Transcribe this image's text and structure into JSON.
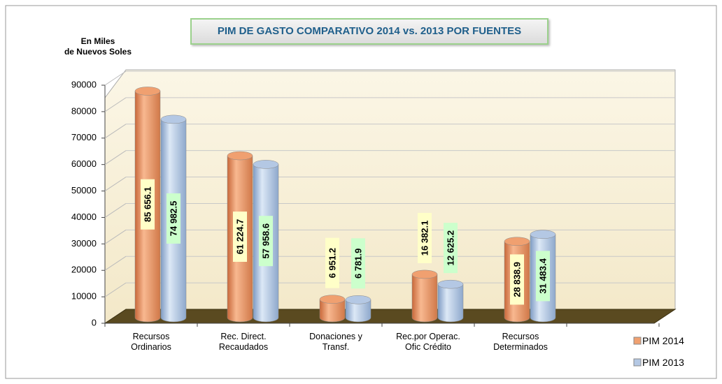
{
  "chart_data": {
    "type": "bar3d",
    "title": "PIM  DE GASTO COMPARATIVO 2014 vs. 2013 POR FUENTES",
    "y_label": "En Miles\nde Nuevos Soles",
    "categories": [
      "Recursos Ordinarios",
      "Rec. Direct. Recaudados",
      "Donaciones y Transf.",
      "Rec.por Operac. Ofic Crédito",
      "Recursos Determinados"
    ],
    "series": [
      {
        "name": "PIM 2014",
        "color": "#f0a070",
        "label_bg": "#ffffc8",
        "values": [
          85656.1,
          61224.7,
          6951.2,
          16382.1,
          28838.9
        ],
        "value_labels": [
          "85 656.1",
          "61 224.7",
          "6 951.2",
          "16 382.1",
          "28 838.9"
        ]
      },
      {
        "name": "PIM 2013",
        "color": "#b4c8e4",
        "label_bg": "#ccffcc",
        "values": [
          74982.5,
          57958.6,
          6781.9,
          12625.2,
          31483.4
        ],
        "value_labels": [
          "74 982.5",
          "57 958.6",
          "6 781.9",
          "12 625.2",
          "31 483.4"
        ]
      }
    ],
    "ylim": [
      0,
      90000
    ],
    "yticks": [
      0,
      10000,
      20000,
      30000,
      40000,
      50000,
      60000,
      70000,
      80000,
      90000
    ],
    "grid": true
  }
}
